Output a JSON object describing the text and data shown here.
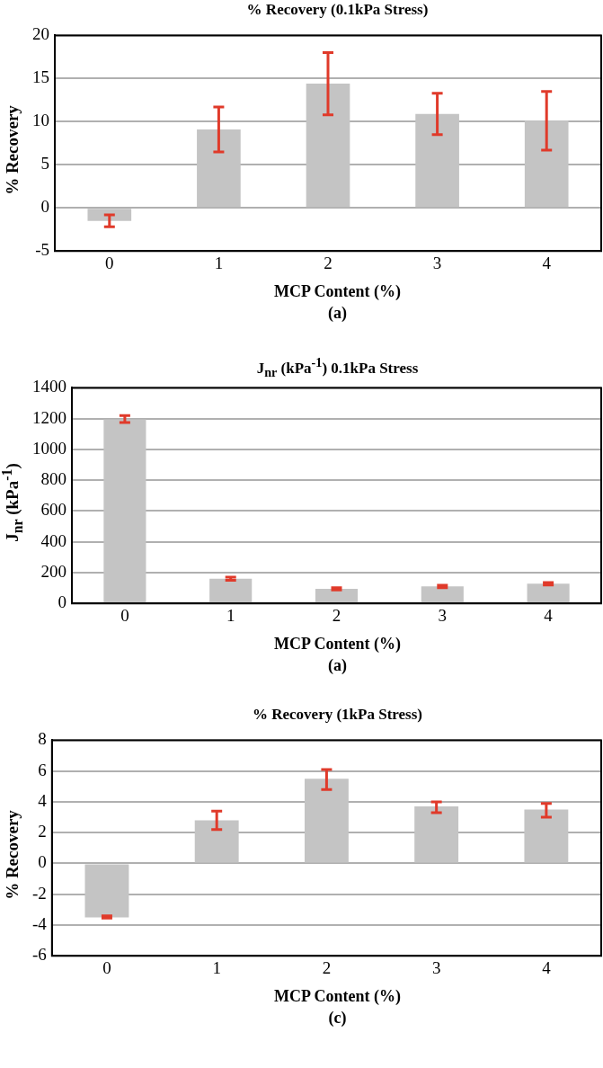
{
  "chart_data": [
    {
      "type": "bar",
      "title": "% Recovery (0.1kPa Stress)",
      "xlabel": "MCP Content (%)",
      "ylabel": "% Recovery",
      "annotations": [
        "(a)"
      ],
      "categories": [
        "0",
        "1",
        "2",
        "3",
        "4"
      ],
      "values": [
        -1.5,
        9.1,
        14.4,
        10.9,
        10.1
      ],
      "color": "#c4c4c4",
      "errors": [
        [
          -2.2,
          -0.8
        ],
        [
          6.5,
          11.7
        ],
        [
          10.8,
          18.0
        ],
        [
          8.5,
          13.3
        ],
        [
          6.7,
          13.5
        ]
      ],
      "ylim": [
        -5,
        20
      ],
      "yticks": [
        -5,
        0,
        5,
        10,
        15,
        20
      ],
      "grid": "y"
    },
    {
      "type": "bar",
      "title": "J$_{nr}$ (kPa$^{-1}$) 0.1kPa Stress",
      "xlabel": "MCP Content (%)",
      "ylabel": "J$_{nr}$ (kPa$^{-1}$)",
      "annotations": [
        "(a)"
      ],
      "categories": [
        "0",
        "1",
        "2",
        "3",
        "4"
      ],
      "values": [
        1195,
        160,
        95,
        110,
        128
      ],
      "color": "#c4c4c4",
      "errors": [
        [
          1175,
          1220
        ],
        [
          150,
          170
        ],
        [
          88,
          102
        ],
        [
          102,
          118
        ],
        [
          120,
          136
        ]
      ],
      "ylim": [
        0,
        1400
      ],
      "yticks": [
        0,
        200,
        400,
        600,
        800,
        1000,
        1200,
        1400
      ],
      "grid": "y"
    },
    {
      "type": "bar",
      "title": "% Recovery (1kPa Stress)",
      "xlabel": "MCP Content (%)",
      "ylabel": "% Recovery",
      "annotations": [
        "(c)"
      ],
      "categories": [
        "0",
        "1",
        "2",
        "3",
        "4"
      ],
      "values": [
        -3.5,
        2.8,
        5.5,
        3.7,
        3.5
      ],
      "color": "#c4c4c4",
      "errors": [
        [
          -3.55,
          -3.4
        ],
        [
          2.2,
          3.4
        ],
        [
          4.8,
          6.1
        ],
        [
          3.3,
          4.0
        ],
        [
          3.0,
          3.9
        ]
      ],
      "ylim": [
        -6,
        8
      ],
      "yticks": [
        -6,
        -4,
        -2,
        0,
        2,
        4,
        6,
        8
      ],
      "grid": "y"
    }
  ]
}
